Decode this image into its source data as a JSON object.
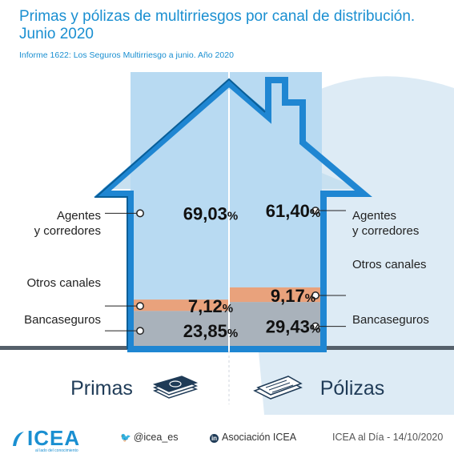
{
  "title": "Primas y pólizas de multirriesgos por canal de distribución. Junio 2020",
  "subtitle": "Informe 1622: Los Seguros Multirriesgo a junio. Año 2020",
  "colors": {
    "roof": "#1f86d2",
    "background_shape": "#d9e9f4",
    "house_fill": "#c7e0f0",
    "agentes": "#b8daf2",
    "otros": "#e9a27c",
    "banca": "#a9b2bb",
    "ground": "#55606b",
    "title": "#1a8fd1"
  },
  "chart_data": {
    "type": "bar",
    "stacked": true,
    "unit": "%",
    "categories": [
      "Primas",
      "Pólizas"
    ],
    "series": [
      {
        "name": "Bancaseguros",
        "values": [
          23.85,
          29.43
        ],
        "labels": [
          "23,85",
          "29,43"
        ]
      },
      {
        "name": "Otros canales",
        "values": [
          7.12,
          9.17
        ],
        "labels": [
          "7,12",
          "9,17"
        ]
      },
      {
        "name": "Agentes y corredores",
        "values": [
          69.03,
          61.4
        ],
        "labels": [
          "69,03",
          "61,40"
        ]
      }
    ],
    "left_labels": {
      "agentes_line1": "Agentes",
      "agentes_line2": "y corredores",
      "otros": "Otros canales",
      "banca": "Bancaseguros"
    },
    "right_labels": {
      "agentes_line1": "Agentes",
      "agentes_line2": "y corredores",
      "otros": "Otros canales",
      "banca": "Bancaseguros"
    },
    "percent_sign": "%"
  },
  "icons": {
    "primas": "money-stack-icon",
    "polizas": "documents-icon"
  },
  "footer": {
    "logo": "ICEA",
    "logo_tagline": "al lado del conocimiento",
    "twitter": "@icea_es",
    "linkedin_label": "in",
    "linkedin": "Asociación ICEA",
    "date": "ICEA al Día - 14/10/2020"
  }
}
